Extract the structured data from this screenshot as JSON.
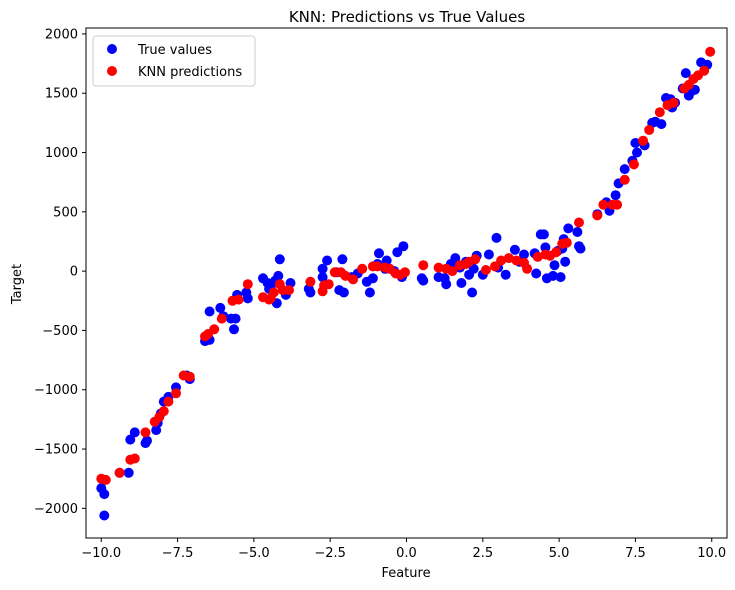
{
  "chart_data": {
    "type": "scatter",
    "title": "KNN: Predictions vs True Values",
    "xlabel": "Feature",
    "ylabel": "Target",
    "xlim": [
      -10.5,
      10.5
    ],
    "ylim": [
      -2250,
      2050
    ],
    "x_ticks": [
      -10.0,
      -7.5,
      -5.0,
      -2.5,
      0.0,
      2.5,
      5.0,
      7.5,
      10.0
    ],
    "x_tick_labels": [
      "−10.0",
      "−7.5",
      "−5.0",
      "−2.5",
      "0.0",
      "2.5",
      "5.0",
      "7.5",
      "10.0"
    ],
    "y_ticks": [
      -2000,
      -1500,
      -1000,
      -500,
      0,
      500,
      1000,
      1500,
      2000
    ],
    "y_tick_labels": [
      "−2000",
      "−1500",
      "−1000",
      "−500",
      "0",
      "500",
      "1000",
      "1500",
      "2000"
    ],
    "grid": false,
    "legend_position": "top-left",
    "series": [
      {
        "name": "True values",
        "color": "#0000ff",
        "points": [
          [
            -10.0,
            -1830
          ],
          [
            -9.9,
            -1880
          ],
          [
            -9.9,
            -2060
          ],
          [
            -9.4,
            -1700
          ],
          [
            -9.1,
            -1700
          ],
          [
            -9.05,
            -1420
          ],
          [
            -8.9,
            -1360
          ],
          [
            -8.55,
            -1450
          ],
          [
            -8.5,
            -1430
          ],
          [
            -8.2,
            -1340
          ],
          [
            -8.15,
            -1280
          ],
          [
            -8.05,
            -1200
          ],
          [
            -7.95,
            -1100
          ],
          [
            -7.8,
            -1060
          ],
          [
            -7.55,
            -980
          ],
          [
            -7.1,
            -910
          ],
          [
            -7.2,
            -880
          ],
          [
            -6.6,
            -590
          ],
          [
            -6.45,
            -580
          ],
          [
            -6.45,
            -340
          ],
          [
            -6.1,
            -310
          ],
          [
            -6.0,
            -380
          ],
          [
            -5.75,
            -400
          ],
          [
            -5.65,
            -490
          ],
          [
            -5.6,
            -400
          ],
          [
            -5.55,
            -200
          ],
          [
            -5.25,
            -180
          ],
          [
            -5.2,
            -230
          ],
          [
            -4.7,
            -60
          ],
          [
            -4.55,
            -100
          ],
          [
            -4.5,
            -150
          ],
          [
            -4.45,
            -130
          ],
          [
            -4.3,
            -80
          ],
          [
            -4.25,
            -270
          ],
          [
            -4.2,
            -40
          ],
          [
            -4.15,
            100
          ],
          [
            -3.95,
            -200
          ],
          [
            -3.8,
            -100
          ],
          [
            -3.2,
            -150
          ],
          [
            -3.15,
            -180
          ],
          [
            -2.75,
            -50
          ],
          [
            -2.75,
            20
          ],
          [
            -2.6,
            90
          ],
          [
            -2.3,
            -10
          ],
          [
            -2.2,
            -160
          ],
          [
            -2.1,
            100
          ],
          [
            -2.05,
            -180
          ],
          [
            -1.8,
            -50
          ],
          [
            -1.6,
            -20
          ],
          [
            -1.3,
            -90
          ],
          [
            -1.2,
            -180
          ],
          [
            -1.1,
            -60
          ],
          [
            -0.95,
            60
          ],
          [
            -0.9,
            150
          ],
          [
            -0.7,
            20
          ],
          [
            -0.65,
            90
          ],
          [
            -0.4,
            0
          ],
          [
            -0.3,
            160
          ],
          [
            -0.15,
            -50
          ],
          [
            -0.1,
            210
          ],
          [
            0.5,
            -60
          ],
          [
            0.55,
            -80
          ],
          [
            1.05,
            -50
          ],
          [
            1.25,
            -60
          ],
          [
            1.3,
            -110
          ],
          [
            1.45,
            60
          ],
          [
            1.6,
            110
          ],
          [
            1.75,
            30
          ],
          [
            1.8,
            -100
          ],
          [
            1.95,
            80
          ],
          [
            2.05,
            -30
          ],
          [
            2.15,
            -180
          ],
          [
            2.2,
            20
          ],
          [
            2.3,
            130
          ],
          [
            2.5,
            -30
          ],
          [
            2.7,
            140
          ],
          [
            2.95,
            280
          ],
          [
            3.0,
            30
          ],
          [
            3.25,
            -30
          ],
          [
            3.55,
            180
          ],
          [
            3.7,
            80
          ],
          [
            3.85,
            140
          ],
          [
            4.2,
            150
          ],
          [
            4.25,
            -20
          ],
          [
            4.4,
            310
          ],
          [
            4.5,
            310
          ],
          [
            4.55,
            200
          ],
          [
            4.6,
            -60
          ],
          [
            4.8,
            -40
          ],
          [
            4.85,
            50
          ],
          [
            4.95,
            170
          ],
          [
            5.05,
            -50
          ],
          [
            5.1,
            190
          ],
          [
            5.15,
            270
          ],
          [
            5.2,
            80
          ],
          [
            5.3,
            360
          ],
          [
            5.6,
            330
          ],
          [
            5.65,
            210
          ],
          [
            5.7,
            190
          ],
          [
            6.25,
            480
          ],
          [
            6.55,
            580
          ],
          [
            6.65,
            510
          ],
          [
            6.85,
            640
          ],
          [
            6.95,
            740
          ],
          [
            7.15,
            860
          ],
          [
            7.4,
            930
          ],
          [
            7.5,
            1080
          ],
          [
            7.55,
            1000
          ],
          [
            7.8,
            1060
          ],
          [
            8.05,
            1250
          ],
          [
            8.15,
            1260
          ],
          [
            8.35,
            1240
          ],
          [
            8.5,
            1460
          ],
          [
            8.65,
            1450
          ],
          [
            8.7,
            1380
          ],
          [
            8.8,
            1420
          ],
          [
            9.05,
            1540
          ],
          [
            9.15,
            1670
          ],
          [
            9.25,
            1480
          ],
          [
            9.35,
            1520
          ],
          [
            9.45,
            1530
          ],
          [
            9.65,
            1760
          ],
          [
            9.85,
            1740
          ]
        ]
      },
      {
        "name": "KNN predictions",
        "color": "#ff0000",
        "points": [
          [
            -10.0,
            -1750
          ],
          [
            -9.85,
            -1760
          ],
          [
            -9.4,
            -1700
          ],
          [
            -9.05,
            -1590
          ],
          [
            -8.9,
            -1580
          ],
          [
            -8.55,
            -1360
          ],
          [
            -8.25,
            -1270
          ],
          [
            -8.1,
            -1230
          ],
          [
            -7.95,
            -1180
          ],
          [
            -7.8,
            -1100
          ],
          [
            -7.55,
            -1030
          ],
          [
            -7.3,
            -880
          ],
          [
            -7.1,
            -890
          ],
          [
            -6.6,
            -550
          ],
          [
            -6.5,
            -530
          ],
          [
            -6.3,
            -490
          ],
          [
            -6.05,
            -400
          ],
          [
            -5.7,
            -250
          ],
          [
            -5.5,
            -240
          ],
          [
            -5.2,
            -110
          ],
          [
            -4.7,
            -220
          ],
          [
            -4.5,
            -240
          ],
          [
            -4.45,
            -230
          ],
          [
            -4.35,
            -180
          ],
          [
            -4.15,
            -110
          ],
          [
            -4.05,
            -160
          ],
          [
            -3.85,
            -160
          ],
          [
            -3.15,
            -90
          ],
          [
            -2.75,
            -170
          ],
          [
            -2.7,
            -120
          ],
          [
            -2.55,
            -110
          ],
          [
            -2.35,
            -10
          ],
          [
            -2.15,
            -10
          ],
          [
            -2.0,
            -40
          ],
          [
            -1.75,
            -70
          ],
          [
            -1.45,
            20
          ],
          [
            -1.1,
            40
          ],
          [
            -0.95,
            40
          ],
          [
            -0.7,
            30
          ],
          [
            -0.55,
            20
          ],
          [
            -0.35,
            -20
          ],
          [
            -0.2,
            -30
          ],
          [
            -0.05,
            -10
          ],
          [
            0.55,
            50
          ],
          [
            1.05,
            30
          ],
          [
            1.3,
            20
          ],
          [
            1.5,
            0
          ],
          [
            1.75,
            50
          ],
          [
            1.95,
            60
          ],
          [
            2.05,
            80
          ],
          [
            2.25,
            100
          ],
          [
            2.6,
            10
          ],
          [
            2.9,
            40
          ],
          [
            3.1,
            90
          ],
          [
            3.35,
            110
          ],
          [
            3.6,
            90
          ],
          [
            3.85,
            70
          ],
          [
            3.95,
            20
          ],
          [
            4.3,
            120
          ],
          [
            4.55,
            140
          ],
          [
            4.7,
            130
          ],
          [
            4.9,
            160
          ],
          [
            5.1,
            230
          ],
          [
            5.25,
            240
          ],
          [
            5.65,
            410
          ],
          [
            6.25,
            470
          ],
          [
            6.45,
            560
          ],
          [
            6.75,
            560
          ],
          [
            6.9,
            560
          ],
          [
            7.15,
            770
          ],
          [
            7.45,
            900
          ],
          [
            7.75,
            1100
          ],
          [
            7.95,
            1190
          ],
          [
            8.3,
            1340
          ],
          [
            8.55,
            1400
          ],
          [
            8.75,
            1420
          ],
          [
            9.1,
            1540
          ],
          [
            9.25,
            1570
          ],
          [
            9.4,
            1620
          ],
          [
            9.55,
            1650
          ],
          [
            9.75,
            1690
          ],
          [
            9.95,
            1850
          ]
        ]
      }
    ]
  }
}
